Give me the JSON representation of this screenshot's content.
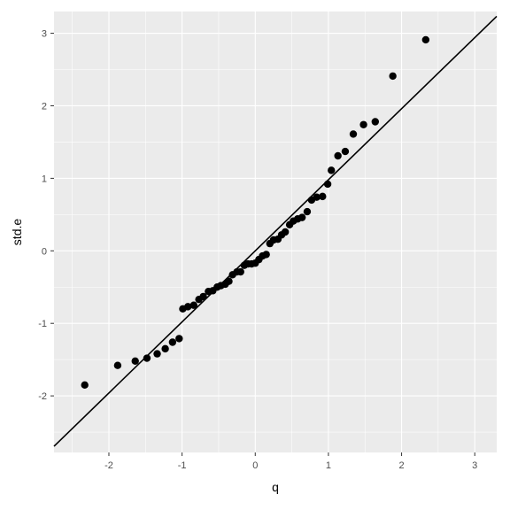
{
  "chart_data": {
    "type": "scatter",
    "title": "",
    "xlabel": "q",
    "ylabel": "std.e",
    "xlim": [
      -2.75,
      3.3
    ],
    "ylim": [
      -2.78,
      3.3
    ],
    "x_ticks": [
      -2,
      -1,
      0,
      1,
      2,
      3
    ],
    "y_ticks": [
      -2,
      -1,
      0,
      1,
      2,
      3
    ],
    "x_tick_labels": [
      "-2",
      "-1",
      "0",
      "1",
      "2",
      "3"
    ],
    "y_tick_labels": [
      "-2",
      "-1",
      "0",
      "1",
      "2",
      "3"
    ],
    "grid": true,
    "panel_background": "#ebebeb",
    "grid_color": "#ffffff",
    "point_color": "#000000",
    "reference_line": {
      "intercept": 0,
      "slope": 0.98,
      "color": "#000000"
    },
    "points": [
      {
        "x": -2.33,
        "y": -1.85
      },
      {
        "x": -1.88,
        "y": -1.58
      },
      {
        "x": -1.64,
        "y": -1.52
      },
      {
        "x": -1.48,
        "y": -1.48
      },
      {
        "x": -1.34,
        "y": -1.42
      },
      {
        "x": -1.23,
        "y": -1.35
      },
      {
        "x": -1.13,
        "y": -1.26
      },
      {
        "x": -1.04,
        "y": -1.21
      },
      {
        "x": -0.99,
        "y": -0.8
      },
      {
        "x": -0.92,
        "y": -0.77
      },
      {
        "x": -0.84,
        "y": -0.75
      },
      {
        "x": -0.77,
        "y": -0.67
      },
      {
        "x": -0.71,
        "y": -0.63
      },
      {
        "x": -0.64,
        "y": -0.56
      },
      {
        "x": -0.58,
        "y": -0.55
      },
      {
        "x": -0.52,
        "y": -0.5
      },
      {
        "x": -0.47,
        "y": -0.48
      },
      {
        "x": -0.41,
        "y": -0.46
      },
      {
        "x": -0.36,
        "y": -0.42
      },
      {
        "x": -0.31,
        "y": -0.33
      },
      {
        "x": -0.25,
        "y": -0.29
      },
      {
        "x": -0.2,
        "y": -0.29
      },
      {
        "x": -0.15,
        "y": -0.2
      },
      {
        "x": -0.1,
        "y": -0.18
      },
      {
        "x": -0.05,
        "y": -0.18
      },
      {
        "x": 0.0,
        "y": -0.17
      },
      {
        "x": 0.05,
        "y": -0.12
      },
      {
        "x": 0.1,
        "y": -0.07
      },
      {
        "x": 0.15,
        "y": -0.05
      },
      {
        "x": 0.2,
        "y": 0.1
      },
      {
        "x": 0.25,
        "y": 0.15
      },
      {
        "x": 0.31,
        "y": 0.16
      },
      {
        "x": 0.36,
        "y": 0.22
      },
      {
        "x": 0.41,
        "y": 0.26
      },
      {
        "x": 0.47,
        "y": 0.36
      },
      {
        "x": 0.52,
        "y": 0.41
      },
      {
        "x": 0.58,
        "y": 0.44
      },
      {
        "x": 0.64,
        "y": 0.46
      },
      {
        "x": 0.71,
        "y": 0.54
      },
      {
        "x": 0.77,
        "y": 0.7
      },
      {
        "x": 0.84,
        "y": 0.74
      },
      {
        "x": 0.92,
        "y": 0.75
      },
      {
        "x": 0.99,
        "y": 0.92
      },
      {
        "x": 1.04,
        "y": 1.11
      },
      {
        "x": 1.13,
        "y": 1.31
      },
      {
        "x": 1.23,
        "y": 1.37
      },
      {
        "x": 1.34,
        "y": 1.61
      },
      {
        "x": 1.48,
        "y": 1.74
      },
      {
        "x": 1.64,
        "y": 1.78
      },
      {
        "x": 1.88,
        "y": 2.41
      },
      {
        "x": 2.33,
        "y": 2.91
      }
    ]
  }
}
